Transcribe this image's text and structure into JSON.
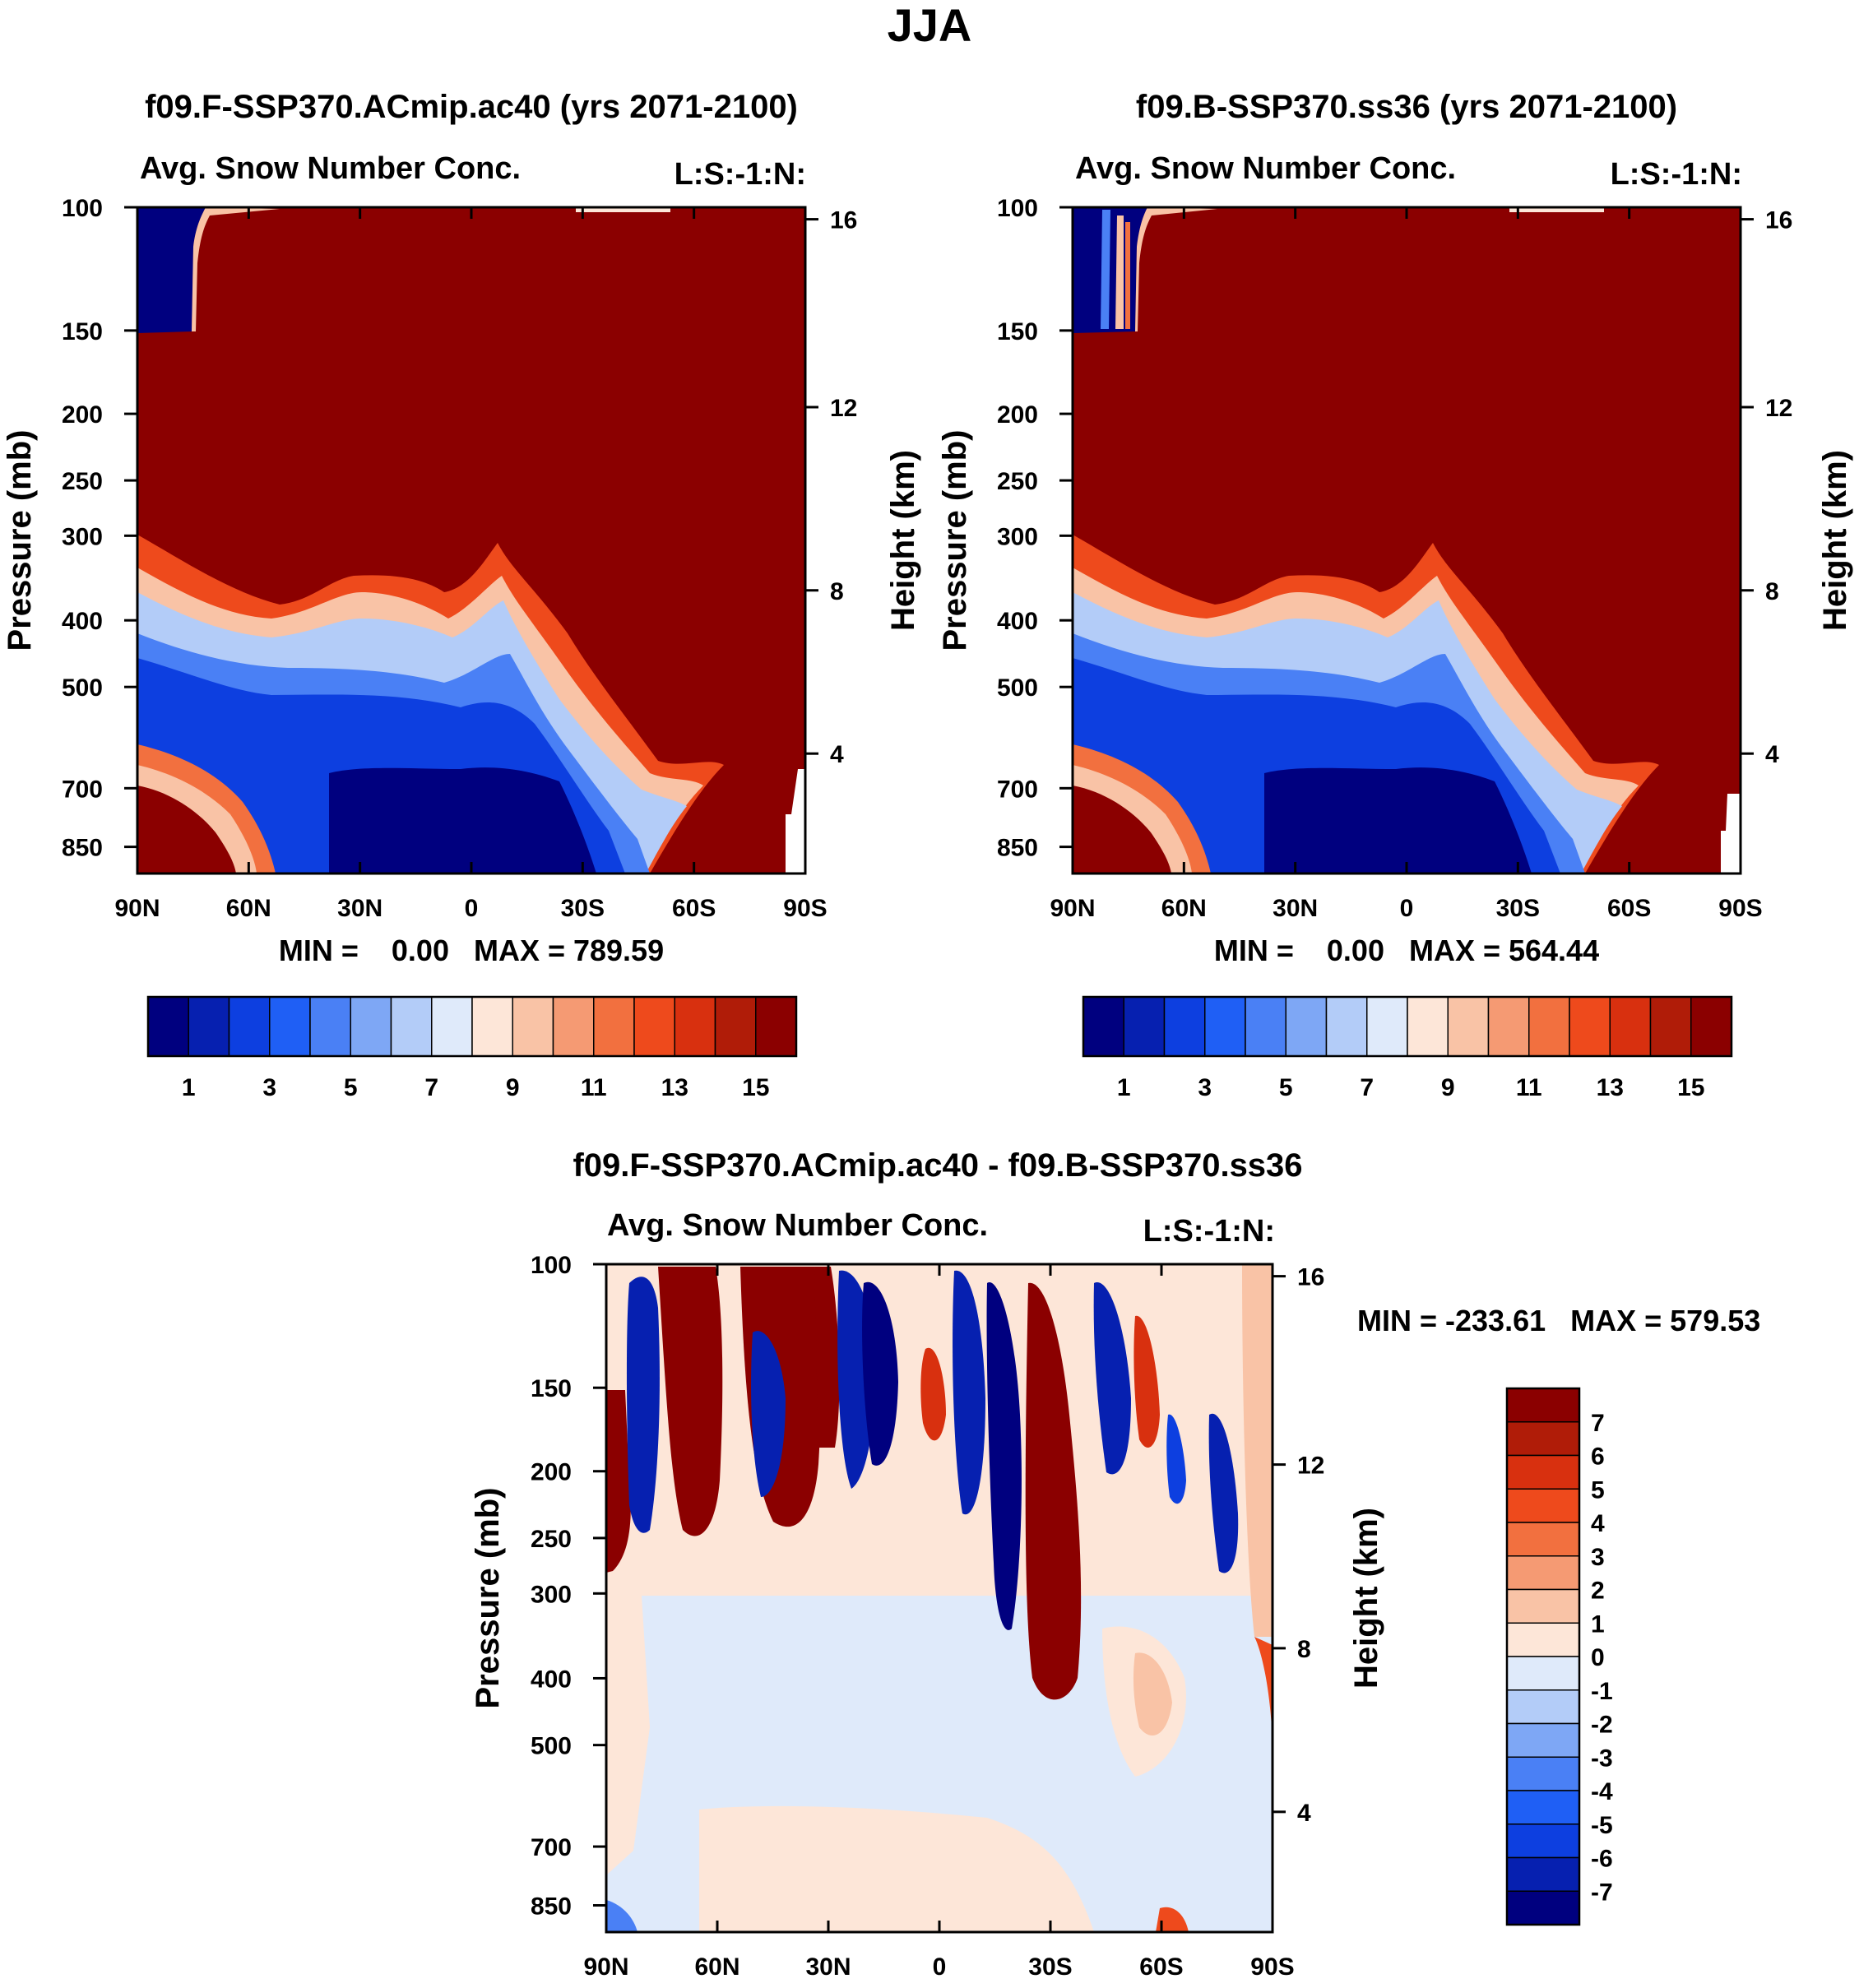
{
  "figure_title": "JJA",
  "chart_data": [
    {
      "type": "heatmap",
      "id": "p1",
      "title": "f09.F-SSP370.ACmip.ac40 (yrs 2071-2100)",
      "subtitle_left": "Avg. Snow Number Conc.",
      "subtitle_right": "L:S:-1:N:",
      "ylabel": "Pressure (mb)",
      "y2label": "Height (km)",
      "x_ticks": [
        "90N",
        "60N",
        "30N",
        "0",
        "30S",
        "60S",
        "90S"
      ],
      "y_ticks": [
        "100",
        "150",
        "200",
        "250",
        "300",
        "400",
        "500",
        "700",
        "850"
      ],
      "y2_ticks": [
        "16",
        "12",
        "8",
        "4"
      ],
      "min_max": "MIN =    0.00   MAX = 789.59",
      "colorbar_labels": [
        "1",
        "3",
        "5",
        "7",
        "9",
        "11",
        "13",
        "15"
      ]
    },
    {
      "type": "heatmap",
      "id": "p2",
      "title": "f09.B-SSP370.ss36 (yrs 2071-2100)",
      "subtitle_left": "Avg. Snow Number Conc.",
      "subtitle_right": "L:S:-1:N:",
      "ylabel": "Pressure (mb)",
      "y2label": "Height (km)",
      "x_ticks": [
        "90N",
        "60N",
        "30N",
        "0",
        "30S",
        "60S",
        "90S"
      ],
      "y_ticks": [
        "100",
        "150",
        "200",
        "250",
        "300",
        "400",
        "500",
        "700",
        "850"
      ],
      "y2_ticks": [
        "16",
        "12",
        "8",
        "4"
      ],
      "min_max": "MIN =    0.00   MAX = 564.44",
      "colorbar_labels": [
        "1",
        "3",
        "5",
        "7",
        "9",
        "11",
        "13",
        "15"
      ]
    },
    {
      "type": "heatmap",
      "id": "p3",
      "title": "f09.F-SSP370.ACmip.ac40 - f09.B-SSP370.ss36",
      "subtitle_left": "Avg. Snow Number Conc.",
      "subtitle_right": "L:S:-1:N:",
      "ylabel": "Pressure (mb)",
      "y2label": "Height (km)",
      "x_ticks": [
        "90N",
        "60N",
        "30N",
        "0",
        "30S",
        "60S",
        "90S"
      ],
      "y_ticks": [
        "100",
        "150",
        "200",
        "250",
        "300",
        "400",
        "500",
        "700",
        "850"
      ],
      "y2_ticks": [
        "16",
        "12",
        "8",
        "4"
      ],
      "min_max": "MIN = -233.61   MAX = 579.53",
      "colorbar_labels": [
        "7",
        "6",
        "5",
        "4",
        "3",
        "2",
        "1",
        "0",
        "-1",
        "-2",
        "-3",
        "-4",
        "-5",
        "-6",
        "-7"
      ]
    }
  ],
  "colors": {
    "abs_scale": [
      "#00007f",
      "#0620b0",
      "#0d3fe0",
      "#1f5ff5",
      "#4a80f5",
      "#7ea7f5",
      "#b3ccf8",
      "#dfeafa",
      "#fde6d8",
      "#f9c3a6",
      "#f59a73",
      "#f2703f",
      "#ee4a1c",
      "#d8300f",
      "#b01c08",
      "#8b0000"
    ],
    "diff_scale": [
      "#8b0000",
      "#b01c08",
      "#d8300f",
      "#ee4a1c",
      "#f2703f",
      "#f59a73",
      "#f9c3a6",
      "#fde6d8",
      "#dfeafa",
      "#b3ccf8",
      "#7ea7f5",
      "#4a80f5",
      "#1f5ff5",
      "#0d3fe0",
      "#0620b0",
      "#00007f"
    ],
    "dark_red": "#8b0000",
    "dark_blue": "#00007f",
    "light_blue": "#dfeafa",
    "light_orange": "#fde6d8"
  }
}
